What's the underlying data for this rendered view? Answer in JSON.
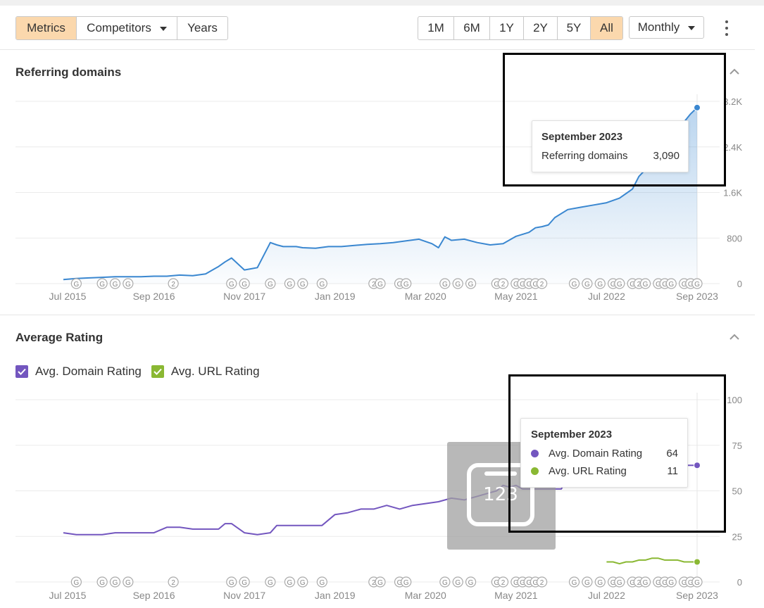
{
  "toolbar": {
    "view_tabs": [
      {
        "label": "Metrics",
        "active": true
      },
      {
        "label": "Competitors",
        "active": false,
        "dropdown": true
      },
      {
        "label": "Years",
        "active": false
      }
    ],
    "range_tabs": [
      {
        "label": "1M",
        "active": false
      },
      {
        "label": "6M",
        "active": false
      },
      {
        "label": "1Y",
        "active": false
      },
      {
        "label": "2Y",
        "active": false
      },
      {
        "label": "5Y",
        "active": false
      },
      {
        "label": "All",
        "active": true
      }
    ],
    "interval": "Monthly",
    "menu_icon": "kebab-icon"
  },
  "colors": {
    "active_tab": "#fbd8ad",
    "referring_line": "#3a87d0",
    "domain_rating": "#7356bf",
    "url_rating": "#8ab833"
  },
  "x_axis_labels": [
    "Jul 2015",
    "Sep 2016",
    "Nov 2017",
    "Jan 2019",
    "Mar 2020",
    "May 2021",
    "Jul 2022",
    "Sep 2023"
  ],
  "annotation_markers": [
    {
      "date": "Sep 2015",
      "label": "G"
    },
    {
      "date": "Jan 2016",
      "label": "G"
    },
    {
      "date": "Mar 2016",
      "label": "G"
    },
    {
      "date": "May 2016",
      "label": "G"
    },
    {
      "date": "Dec 2016",
      "label": "2"
    },
    {
      "date": "Sep 2017",
      "label": "G"
    },
    {
      "date": "Nov 2017",
      "label": "G"
    },
    {
      "date": "Mar 2018",
      "label": "G"
    },
    {
      "date": "Jun 2018",
      "label": "G"
    },
    {
      "date": "Aug 2018",
      "label": "G"
    },
    {
      "date": "Nov 2018",
      "label": "G"
    },
    {
      "date": "Jul 2019",
      "label": "2"
    },
    {
      "date": "Aug 2019",
      "label": "G"
    },
    {
      "date": "Nov 2019",
      "label": "G"
    },
    {
      "date": "Dec 2019",
      "label": "G"
    },
    {
      "date": "Jun 2020",
      "label": "G"
    },
    {
      "date": "Aug 2020",
      "label": "G"
    },
    {
      "date": "Oct 2020",
      "label": "G"
    },
    {
      "date": "Feb 2021",
      "label": "G"
    },
    {
      "date": "Mar 2021",
      "label": "2"
    },
    {
      "date": "May 2021",
      "label": "G"
    },
    {
      "date": "Jun 2021",
      "label": "G"
    },
    {
      "date": "Jul 2021",
      "label": "G"
    },
    {
      "date": "Aug 2021",
      "label": "G"
    },
    {
      "date": "Sep 2021",
      "label": "2"
    },
    {
      "date": "Feb 2022",
      "label": "G"
    },
    {
      "date": "Apr 2022",
      "label": "G"
    },
    {
      "date": "Jun 2022",
      "label": "G"
    },
    {
      "date": "Aug 2022",
      "label": "G"
    },
    {
      "date": "Sep 2022",
      "label": "G"
    },
    {
      "date": "Nov 2022",
      "label": "G"
    },
    {
      "date": "Dec 2022",
      "label": "2"
    },
    {
      "date": "Jan 2023",
      "label": "G"
    },
    {
      "date": "Mar 2023",
      "label": "G"
    },
    {
      "date": "Apr 2023",
      "label": "G"
    },
    {
      "date": "May 2023",
      "label": "G"
    },
    {
      "date": "Jul 2023",
      "label": "G"
    },
    {
      "date": "Aug 2023",
      "label": "G"
    },
    {
      "date": "Sep 2023",
      "label": "G"
    }
  ],
  "referring": {
    "title": "Referring domains",
    "y_ticks": [
      "0",
      "800",
      "1.6K",
      "2.4K",
      "3.2K"
    ],
    "tooltip": {
      "date": "September 2023",
      "label": "Referring domains",
      "value": "3,090"
    }
  },
  "rating": {
    "title": "Average Rating",
    "legend": [
      {
        "label": "Avg. Domain Rating",
        "color": "#7356bf",
        "checked": true
      },
      {
        "label": "Avg. URL Rating",
        "color": "#8ab833",
        "checked": true
      }
    ],
    "y_ticks": [
      "0",
      "25",
      "50",
      "75",
      "100"
    ],
    "tooltip": {
      "date": "September 2023",
      "rows": [
        {
          "label": "Avg. Domain Rating",
          "value": "64",
          "color": "#7356bf"
        },
        {
          "label": "Avg. URL Rating",
          "value": "11",
          "color": "#8ab833"
        }
      ]
    },
    "overlay_text": "123"
  },
  "chart_data": [
    {
      "type": "area",
      "title": "Referring domains",
      "xlabel": "",
      "ylabel": "",
      "x_range": [
        "Jul 2015",
        "Sep 2023"
      ],
      "ylim": [
        0,
        3200
      ],
      "grid": true,
      "series": [
        {
          "x": [
            "Jul 2015",
            "Sep 2015",
            "Nov 2015",
            "Jan 2016",
            "Mar 2016",
            "May 2016",
            "Jul 2016",
            "Sep 2016",
            "Nov 2016",
            "Jan 2017",
            "Mar 2017",
            "May 2017",
            "Jul 2017",
            "Aug 2017",
            "Sep 2017",
            "Nov 2017",
            "Dec 2017",
            "Jan 2018",
            "Mar 2018",
            "Apr 2018",
            "May 2018",
            "Jun 2018",
            "Jul 2018",
            "Aug 2018",
            "Oct 2018",
            "Dec 2018",
            "Feb 2019",
            "Apr 2019",
            "Jun 2019",
            "Aug 2019",
            "Oct 2019",
            "Dec 2019",
            "Feb 2020",
            "Apr 2020",
            "May 2020",
            "Jun 2020",
            "Jul 2020",
            "Sep 2020",
            "Nov 2020",
            "Jan 2021",
            "Mar 2021",
            "May 2021",
            "Jul 2021",
            "Aug 2021",
            "Sep 2021",
            "Oct 2021",
            "Nov 2021",
            "Jan 2022",
            "Mar 2022",
            "May 2022",
            "Jul 2022",
            "Sep 2022",
            "Nov 2022",
            "Dec 2022",
            "Feb 2023",
            "Apr 2023",
            "Jun 2023",
            "Jul 2023",
            "Aug 2023",
            "Sep 2023"
          ],
          "values": [
            70,
            90,
            100,
            110,
            120,
            120,
            120,
            130,
            130,
            150,
            140,
            170,
            300,
            380,
            450,
            240,
            260,
            280,
            720,
            680,
            650,
            650,
            650,
            630,
            620,
            650,
            650,
            670,
            690,
            700,
            720,
            750,
            780,
            700,
            630,
            820,
            760,
            780,
            720,
            680,
            700,
            830,
            900,
            980,
            1000,
            1030,
            1160,
            1300,
            1340,
            1380,
            1420,
            1500,
            1660,
            1880,
            2120,
            2380,
            2640,
            2840,
            2980,
            3090
          ]
        }
      ]
    },
    {
      "type": "line",
      "title": "Average Rating",
      "xlabel": "",
      "ylabel": "",
      "x_range": [
        "Jul 2015",
        "Sep 2023"
      ],
      "ylim": [
        0,
        100
      ],
      "grid": true,
      "legend": "top-left",
      "series": [
        {
          "name": "Avg. Domain Rating",
          "x": [
            "Jul 2015",
            "Sep 2015",
            "Nov 2015",
            "Jan 2016",
            "Mar 2016",
            "May 2016",
            "Jul 2016",
            "Sep 2016",
            "Nov 2016",
            "Jan 2017",
            "Mar 2017",
            "May 2017",
            "Jul 2017",
            "Aug 2017",
            "Sep 2017",
            "Nov 2017",
            "Jan 2018",
            "Mar 2018",
            "Apr 2018",
            "May 2018",
            "Jul 2018",
            "Sep 2018",
            "Nov 2018",
            "Jan 2019",
            "Mar 2019",
            "May 2019",
            "Jul 2019",
            "Sep 2019",
            "Nov 2019",
            "Jan 2020",
            "Mar 2020",
            "May 2020",
            "Jul 2020",
            "Sep 2020",
            "Nov 2020",
            "Jan 2021",
            "Feb 2021",
            "Mar 2021",
            "Apr 2021",
            "May 2021",
            "Jun 2021",
            "Aug 2021",
            "Oct 2021",
            "Dec 2021",
            "Feb 2022",
            "Apr 2022",
            "Jun 2022",
            "Aug 2022",
            "Oct 2022",
            "Dec 2022",
            "Feb 2023",
            "Apr 2023",
            "Jun 2023",
            "Aug 2023",
            "Sep 2023"
          ],
          "values": [
            27,
            26,
            26,
            26,
            27,
            27,
            27,
            27,
            30,
            30,
            29,
            29,
            29,
            32,
            32,
            27,
            26,
            27,
            31,
            31,
            31,
            31,
            31,
            37,
            38,
            40,
            40,
            42,
            40,
            42,
            43,
            44,
            46,
            45,
            47,
            49,
            50,
            53,
            52,
            53,
            51,
            51,
            51,
            51,
            64,
            64,
            64,
            64,
            64,
            64,
            64,
            64,
            64,
            64,
            64
          ]
        },
        {
          "name": "Avg. URL Rating",
          "x": [
            "Jul 2022",
            "Aug 2022",
            "Sep 2022",
            "Oct 2022",
            "Nov 2022",
            "Dec 2022",
            "Jan 2023",
            "Feb 2023",
            "Mar 2023",
            "Apr 2023",
            "May 2023",
            "Jun 2023",
            "Jul 2023",
            "Aug 2023",
            "Sep 2023"
          ],
          "values": [
            11,
            11,
            10,
            11,
            11,
            12,
            12,
            13,
            13,
            12,
            12,
            12,
            11,
            11,
            11
          ]
        }
      ]
    }
  ]
}
